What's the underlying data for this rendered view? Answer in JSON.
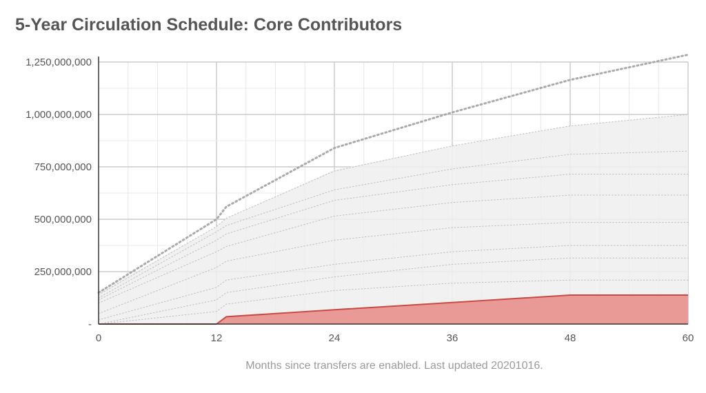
{
  "chart_data": {
    "type": "area",
    "title": "5-Year Circulation Schedule: Core Contributors",
    "xlabel": "Months since transfers are enabled. Last updated 20201016.",
    "ylabel": "",
    "xlim": [
      0,
      60
    ],
    "ylim": [
      0,
      1250000000
    ],
    "x_ticks": [
      "0",
      "12",
      "24",
      "36",
      "48",
      "60"
    ],
    "y_ticks": [
      "-",
      "250,000,000",
      "500,000,000",
      "750,000,000",
      "1,000,000,000",
      "1,250,000,000"
    ],
    "grid": true,
    "series": [
      {
        "role": "highlight-area",
        "color": "#e8908c",
        "line_color": "#c94a45",
        "points": [
          [
            0,
            0
          ],
          [
            12,
            0
          ],
          [
            13,
            35000000
          ],
          [
            24,
            68000000
          ],
          [
            36,
            103000000
          ],
          [
            48,
            138000000
          ],
          [
            60,
            138000000
          ]
        ]
      },
      {
        "role": "background-area",
        "color": "#eeeeee",
        "points": [
          [
            0,
            150000000
          ],
          [
            12,
            465000000
          ],
          [
            13,
            505000000
          ],
          [
            24,
            735000000
          ],
          [
            36,
            850000000
          ],
          [
            48,
            945000000
          ],
          [
            60,
            1000000000
          ]
        ]
      },
      {
        "role": "dotted-guide",
        "color": "#aaaaaa",
        "style": "dotted-heavy",
        "points": [
          [
            0,
            150000000
          ],
          [
            12,
            500000000
          ],
          [
            13,
            560000000
          ],
          [
            24,
            840000000
          ],
          [
            36,
            1010000000
          ],
          [
            48,
            1165000000
          ],
          [
            60,
            1285000000
          ]
        ]
      },
      {
        "role": "dotted-guide",
        "color": "#bbbbbb",
        "style": "dotted-light",
        "points": [
          [
            0,
            140000000
          ],
          [
            12,
            465000000
          ],
          [
            13,
            505000000
          ],
          [
            24,
            730000000
          ],
          [
            36,
            850000000
          ],
          [
            48,
            945000000
          ],
          [
            60,
            1000000000
          ]
        ]
      },
      {
        "role": "dotted-guide",
        "color": "#bbbbbb",
        "style": "dotted-light",
        "points": [
          [
            0,
            125000000
          ],
          [
            12,
            440000000
          ],
          [
            13,
            470000000
          ],
          [
            24,
            640000000
          ],
          [
            36,
            740000000
          ],
          [
            48,
            810000000
          ],
          [
            60,
            825000000
          ]
        ]
      },
      {
        "role": "dotted-guide",
        "color": "#bbbbbb",
        "style": "dotted-light",
        "points": [
          [
            0,
            115000000
          ],
          [
            12,
            400000000
          ],
          [
            13,
            430000000
          ],
          [
            24,
            590000000
          ],
          [
            36,
            665000000
          ],
          [
            48,
            715000000
          ],
          [
            60,
            715000000
          ]
        ]
      },
      {
        "role": "dotted-guide",
        "color": "#bbbbbb",
        "style": "dotted-light",
        "points": [
          [
            0,
            100000000
          ],
          [
            12,
            345000000
          ],
          [
            13,
            370000000
          ],
          [
            24,
            515000000
          ],
          [
            36,
            580000000
          ],
          [
            48,
            615000000
          ],
          [
            60,
            615000000
          ]
        ]
      },
      {
        "role": "dotted-guide",
        "color": "#bbbbbb",
        "style": "dotted-light",
        "points": [
          [
            0,
            50000000
          ],
          [
            12,
            270000000
          ],
          [
            13,
            300000000
          ],
          [
            24,
            400000000
          ],
          [
            36,
            460000000
          ],
          [
            48,
            485000000
          ],
          [
            60,
            485000000
          ]
        ]
      },
      {
        "role": "dotted-guide",
        "color": "#bbbbbb",
        "style": "dotted-light",
        "points": [
          [
            0,
            20000000
          ],
          [
            12,
            175000000
          ],
          [
            13,
            210000000
          ],
          [
            24,
            285000000
          ],
          [
            36,
            345000000
          ],
          [
            48,
            375000000
          ],
          [
            60,
            375000000
          ]
        ]
      },
      {
        "role": "dotted-guide",
        "color": "#bbbbbb",
        "style": "dotted-light",
        "points": [
          [
            0,
            0
          ],
          [
            12,
            115000000
          ],
          [
            13,
            150000000
          ],
          [
            24,
            225000000
          ],
          [
            36,
            285000000
          ],
          [
            48,
            315000000
          ],
          [
            60,
            315000000
          ]
        ]
      },
      {
        "role": "dotted-guide",
        "color": "#bbbbbb",
        "style": "dotted-light",
        "points": [
          [
            0,
            0
          ],
          [
            12,
            60000000
          ],
          [
            13,
            95000000
          ],
          [
            24,
            160000000
          ],
          [
            36,
            195000000
          ],
          [
            48,
            210000000
          ],
          [
            60,
            210000000
          ]
        ]
      }
    ]
  }
}
